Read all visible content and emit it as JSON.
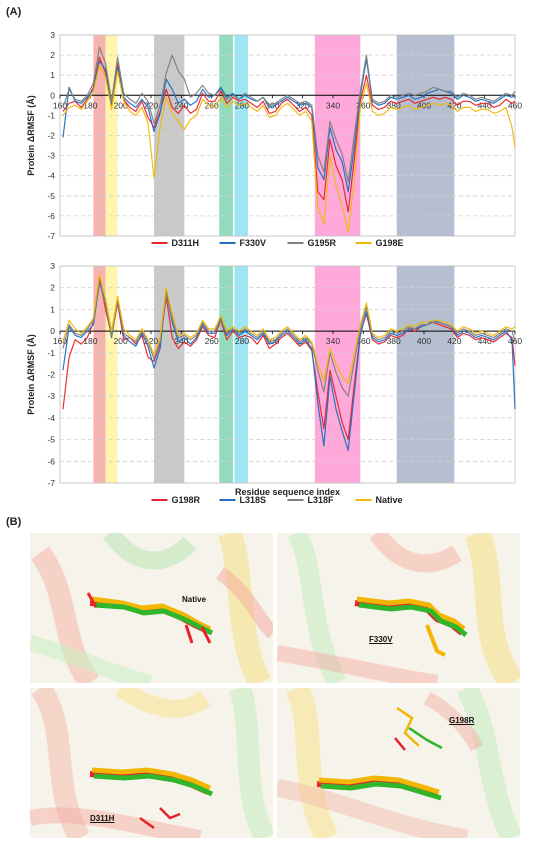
{
  "panel_a_label": "(A)",
  "panel_b_label": "(B)",
  "colors": {
    "red": "#e8232b",
    "blue": "#1f6fc1",
    "gray": "#808080",
    "gold": "#f2b705",
    "grid": "#d0d0d0"
  },
  "highlight_regions": [
    {
      "from": 182,
      "to": 190,
      "color": "#f4a7a2"
    },
    {
      "from": 190,
      "to": 198,
      "color": "#fff3a0"
    },
    {
      "from": 222,
      "to": 242,
      "color": "#bfbfbf"
    },
    {
      "from": 265,
      "to": 274,
      "color": "#7fd6b0"
    },
    {
      "from": 275,
      "to": 284,
      "color": "#8fe0f2"
    },
    {
      "from": 328,
      "to": 358,
      "color": "#ff9ad5"
    },
    {
      "from": 382,
      "to": 420,
      "color": "#a8b4c7"
    }
  ],
  "chart_data": [
    {
      "type": "line",
      "title": "",
      "xlabel": "",
      "ylabel": "Protein ΔRMSF (Å)",
      "xlim": [
        160,
        460
      ],
      "ylim": [
        -7,
        3
      ],
      "xticks": [
        160,
        180,
        200,
        220,
        240,
        260,
        280,
        300,
        320,
        340,
        360,
        380,
        400,
        420,
        440,
        460
      ],
      "yticks": [
        3,
        2,
        1,
        0,
        -1,
        -2,
        -3,
        -4,
        -5,
        -6,
        -7
      ],
      "x": [
        162,
        166,
        170,
        174,
        178,
        182,
        186,
        190,
        194,
        198,
        202,
        206,
        210,
        214,
        218,
        222,
        226,
        230,
        234,
        238,
        242,
        246,
        250,
        254,
        258,
        262,
        266,
        270,
        274,
        278,
        282,
        286,
        290,
        294,
        298,
        302,
        306,
        310,
        314,
        318,
        322,
        326,
        330,
        334,
        338,
        342,
        346,
        350,
        354,
        358,
        362,
        366,
        370,
        374,
        378,
        382,
        386,
        390,
        394,
        398,
        402,
        406,
        410,
        414,
        418,
        422,
        426,
        430,
        434,
        438,
        442,
        446,
        450,
        454,
        458,
        460
      ],
      "series": [
        {
          "name": "D311H",
          "color": "#e8232b",
          "values": [
            -0.8,
            -0.4,
            -0.3,
            -0.6,
            -0.2,
            0.4,
            1.9,
            1.1,
            -0.5,
            1.6,
            -0.2,
            -0.6,
            -0.8,
            -0.3,
            -1.1,
            -1.6,
            -0.8,
            0.3,
            -0.6,
            -0.9,
            -0.5,
            -0.9,
            -0.7,
            0.1,
            -0.3,
            -0.3,
            0.2,
            -0.4,
            -0.1,
            -0.3,
            -0.2,
            -0.4,
            -0.6,
            -0.3,
            -0.9,
            -0.8,
            -0.4,
            -0.2,
            -0.5,
            -0.8,
            -0.6,
            -1.0,
            -4.8,
            -5.2,
            -2.2,
            -3.5,
            -4.2,
            -5.8,
            -3.2,
            -0.3,
            1.0,
            -0.5,
            -0.7,
            -0.6,
            -0.3,
            -0.4,
            -0.3,
            -0.2,
            -0.4,
            -0.3,
            -0.2,
            -0.1,
            -0.2,
            -0.1,
            -0.2,
            -0.5,
            -0.3,
            -0.3,
            -0.5,
            -0.4,
            -0.4,
            -0.6,
            -0.5,
            -0.2,
            -0.4,
            -0.3
          ]
        },
        {
          "name": "F330V",
          "color": "#1f6fc1",
          "values": [
            -2.1,
            0.4,
            -0.3,
            -0.4,
            -0.1,
            0.3,
            1.7,
            1.3,
            -0.4,
            1.4,
            -0.1,
            -0.4,
            -0.6,
            -0.2,
            -0.6,
            -1.8,
            -0.9,
            0.8,
            0.3,
            -0.4,
            -0.2,
            -0.5,
            -0.3,
            0.3,
            -0.1,
            0.0,
            0.4,
            -0.1,
            0.1,
            -0.2,
            0.0,
            -0.2,
            -0.3,
            -0.1,
            -0.6,
            -0.5,
            -0.3,
            -0.1,
            -0.3,
            -0.5,
            -0.4,
            -0.6,
            -3.6,
            -4.2,
            -1.6,
            -2.7,
            -3.3,
            -4.8,
            -2.6,
            0.0,
            1.8,
            -0.3,
            -0.5,
            -0.4,
            -0.1,
            -0.2,
            -0.1,
            0.0,
            -0.2,
            -0.1,
            0.1,
            0.2,
            0.3,
            0.2,
            0.1,
            -0.2,
            0.0,
            -0.1,
            -0.3,
            -0.2,
            -0.3,
            -0.4,
            -0.2,
            0.0,
            -0.1,
            0.0
          ]
        },
        {
          "name": "G195R",
          "color": "#808080",
          "values": [
            -0.6,
            0.3,
            -0.2,
            -0.3,
            0.0,
            0.6,
            2.4,
            1.6,
            -0.3,
            1.9,
            0.1,
            -0.2,
            -0.4,
            0.1,
            -0.3,
            -1.4,
            -0.5,
            1.1,
            2.0,
            1.2,
            0.8,
            -0.1,
            0.1,
            0.5,
            0.1,
            0.0,
            0.3,
            -0.2,
            0.0,
            -0.2,
            0.1,
            -0.1,
            -0.3,
            -0.1,
            -0.5,
            -0.4,
            -0.2,
            0.0,
            -0.2,
            -0.4,
            -0.3,
            -0.5,
            -3.0,
            -3.8,
            -1.3,
            -2.2,
            -2.9,
            -4.3,
            -2.0,
            0.2,
            2.0,
            -0.2,
            -0.4,
            -0.3,
            0.0,
            -0.1,
            0.0,
            0.1,
            0.0,
            0.1,
            0.2,
            0.4,
            0.3,
            0.2,
            0.2,
            -0.1,
            0.1,
            0.0,
            -0.2,
            -0.1,
            -0.2,
            -0.3,
            -0.1,
            0.1,
            0.0,
            0.2
          ]
        },
        {
          "name": "G198E",
          "color": "#f2b705",
          "values": [
            -1.0,
            -0.6,
            -0.5,
            -0.7,
            -0.3,
            0.2,
            1.5,
            0.9,
            -0.7,
            1.2,
            -0.3,
            -0.8,
            -1.0,
            -0.6,
            -1.4,
            -4.1,
            -1.6,
            -0.1,
            -0.9,
            -1.3,
            -1.7,
            -1.2,
            -1.0,
            -0.2,
            -0.5,
            -0.6,
            -0.1,
            -0.6,
            -0.3,
            -0.5,
            -0.4,
            -0.6,
            -0.8,
            -0.5,
            -1.1,
            -1.0,
            -0.6,
            -0.4,
            -0.7,
            -1.0,
            -0.8,
            -1.3,
            -5.6,
            -6.4,
            -3.0,
            -4.5,
            -5.5,
            -6.8,
            -4.2,
            -0.6,
            0.6,
            -0.8,
            -1.0,
            -0.9,
            -0.6,
            -0.7,
            -0.6,
            -0.5,
            -0.7,
            -0.6,
            -0.5,
            -0.4,
            -0.5,
            -0.4,
            -0.5,
            -0.8,
            -0.6,
            -0.6,
            -0.8,
            -0.7,
            -0.7,
            -0.9,
            -0.8,
            -0.6,
            -1.6,
            -2.6
          ]
        }
      ]
    },
    {
      "type": "line",
      "title": "",
      "xlabel": "Residue sequence index",
      "ylabel": "Protein ΔRMSF (Å)",
      "xlim": [
        160,
        460
      ],
      "ylim": [
        -7,
        3
      ],
      "xticks": [
        160,
        180,
        200,
        220,
        240,
        260,
        280,
        300,
        320,
        340,
        360,
        380,
        400,
        420,
        440,
        460
      ],
      "yticks": [
        3,
        2,
        1,
        0,
        -1,
        -2,
        -3,
        -4,
        -5,
        -6,
        -7
      ],
      "x": [
        162,
        166,
        170,
        174,
        178,
        182,
        186,
        190,
        194,
        198,
        202,
        206,
        210,
        214,
        218,
        222,
        226,
        230,
        234,
        238,
        242,
        246,
        250,
        254,
        258,
        262,
        266,
        270,
        274,
        278,
        282,
        286,
        290,
        294,
        298,
        302,
        306,
        310,
        314,
        318,
        322,
        326,
        330,
        334,
        338,
        342,
        346,
        350,
        354,
        358,
        362,
        366,
        370,
        374,
        378,
        382,
        386,
        390,
        394,
        398,
        402,
        406,
        410,
        414,
        418,
        422,
        426,
        430,
        434,
        438,
        442,
        446,
        450,
        454,
        458,
        460
      ],
      "series": [
        {
          "name": "G198R",
          "color": "#e8232b",
          "values": [
            -3.6,
            -1.2,
            -0.4,
            -0.6,
            -0.3,
            0.4,
            2.5,
            1.0,
            -0.2,
            1.3,
            -0.4,
            -0.3,
            -0.6,
            -0.2,
            -1.2,
            -1.4,
            -0.6,
            1.6,
            -0.3,
            -0.8,
            -0.5,
            -0.7,
            -0.4,
            0.2,
            -0.2,
            -0.3,
            0.5,
            -0.4,
            0.0,
            -0.3,
            -0.2,
            -0.3,
            -0.6,
            -0.2,
            -0.8,
            -0.6,
            -0.3,
            -0.1,
            -0.4,
            -0.7,
            -0.5,
            -0.9,
            -2.8,
            -4.5,
            -1.8,
            -3.0,
            -4.2,
            -5.0,
            -2.5,
            -0.1,
            0.8,
            -0.4,
            -0.6,
            -0.5,
            -0.2,
            -0.3,
            -0.2,
            0.1,
            0.0,
            0.2,
            0.3,
            0.4,
            0.3,
            0.2,
            0.1,
            -0.3,
            -0.1,
            -0.2,
            -0.4,
            -0.3,
            -0.4,
            -0.5,
            -0.3,
            -0.1,
            -0.3,
            -1.6
          ]
        },
        {
          "name": "L318S",
          "color": "#1f6fc1",
          "values": [
            -1.8,
            0.2,
            -0.2,
            -0.3,
            0.0,
            0.3,
            2.2,
            1.4,
            -0.3,
            1.5,
            -0.2,
            -0.5,
            -0.7,
            -0.1,
            -0.7,
            -1.7,
            -0.8,
            1.9,
            0.4,
            -0.5,
            -0.3,
            -0.6,
            -0.3,
            0.3,
            -0.1,
            -0.1,
            0.6,
            -0.2,
            0.1,
            -0.2,
            0.0,
            -0.2,
            -0.4,
            -0.1,
            -0.6,
            -0.5,
            -0.2,
            0.0,
            -0.3,
            -0.6,
            -0.4,
            -0.8,
            -3.3,
            -5.3,
            -2.1,
            -3.6,
            -4.6,
            -5.5,
            -2.9,
            -0.2,
            0.9,
            -0.3,
            -0.5,
            -0.4,
            -0.1,
            -0.2,
            -0.1,
            0.1,
            0.1,
            0.2,
            0.3,
            0.5,
            0.4,
            0.3,
            0.2,
            -0.2,
            0.0,
            -0.1,
            -0.3,
            -0.2,
            -0.3,
            -0.4,
            -0.2,
            0.0,
            -0.4,
            -3.6
          ]
        },
        {
          "name": "L318F",
          "color": "#808080",
          "values": [
            -0.8,
            0.3,
            -0.1,
            -0.2,
            0.1,
            0.5,
            2.3,
            1.2,
            -0.2,
            1.4,
            -0.1,
            -0.3,
            -0.5,
            0.0,
            -0.5,
            -1.3,
            -0.5,
            1.7,
            0.6,
            -0.3,
            -0.2,
            -0.4,
            -0.2,
            0.4,
            0.0,
            0.0,
            0.5,
            -0.1,
            0.1,
            -0.1,
            0.1,
            -0.1,
            -0.3,
            0.0,
            -0.5,
            -0.4,
            -0.1,
            0.1,
            -0.2,
            -0.5,
            -0.3,
            -0.6,
            -1.8,
            -2.8,
            -1.0,
            -1.9,
            -2.6,
            -3.0,
            -1.4,
            0.1,
            1.1,
            -0.2,
            -0.4,
            -0.3,
            0.0,
            -0.1,
            0.0,
            0.2,
            0.1,
            0.3,
            0.3,
            0.4,
            0.4,
            0.3,
            0.2,
            -0.1,
            0.1,
            0.0,
            -0.2,
            -0.1,
            -0.2,
            -0.3,
            -0.1,
            0.1,
            0.0,
            -0.5
          ]
        },
        {
          "name": "Native",
          "color": "#f2b705",
          "values": [
            -0.5,
            0.5,
            0.1,
            -0.1,
            0.2,
            0.6,
            2.6,
            1.5,
            0.0,
            1.6,
            0.1,
            -0.2,
            -0.4,
            0.1,
            -0.4,
            -1.1,
            -0.3,
            2.0,
            0.8,
            -0.2,
            -0.1,
            -0.3,
            -0.1,
            0.5,
            0.1,
            0.1,
            0.7,
            0.0,
            0.2,
            0.0,
            0.2,
            0.0,
            -0.2,
            0.1,
            -0.4,
            -0.3,
            0.0,
            0.2,
            -0.1,
            -0.4,
            -0.2,
            -0.5,
            -1.5,
            -2.3,
            -0.8,
            -1.5,
            -2.1,
            -2.4,
            -1.1,
            0.3,
            1.3,
            -0.1,
            -0.3,
            -0.2,
            0.1,
            0.0,
            0.1,
            0.3,
            0.2,
            0.4,
            0.4,
            0.5,
            0.5,
            0.4,
            0.3,
            0.0,
            0.2,
            0.1,
            -0.1,
            0.0,
            -0.1,
            -0.2,
            0.0,
            0.2,
            0.1,
            0.2
          ]
        }
      ]
    }
  ],
  "structure_panels": [
    {
      "label": "Native",
      "underline": false
    },
    {
      "label": "F330V",
      "underline": true
    },
    {
      "label": "D311H",
      "underline": true
    },
    {
      "label": "G198R",
      "underline": true
    }
  ]
}
